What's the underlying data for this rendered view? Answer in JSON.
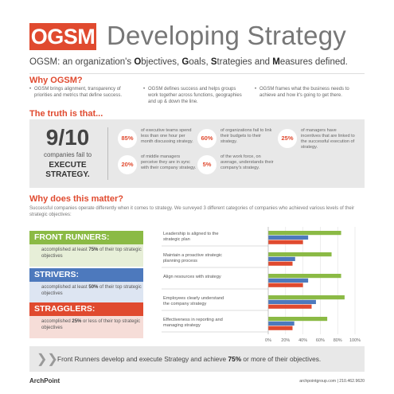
{
  "header": {
    "logo": "OGSM",
    "title": "Developing Strategy",
    "subtitle_parts": [
      {
        "text": "OGSM: ",
        "bold": false
      },
      {
        "text": "an organization's ",
        "bold": false
      },
      {
        "text": "O",
        "bold": true
      },
      {
        "text": "bjectives, ",
        "bold": false
      },
      {
        "text": "G",
        "bold": true
      },
      {
        "text": "oals, ",
        "bold": false
      },
      {
        "text": "S",
        "bold": true
      },
      {
        "text": "trategies and ",
        "bold": false
      },
      {
        "text": "M",
        "bold": true
      },
      {
        "text": "easures defined.",
        "bold": false
      }
    ]
  },
  "why_ogsm": {
    "heading": "Why OGSM?",
    "bullet": "•",
    "items": [
      "OGSM brings alignment, transparency of priorities and metrics that define success.",
      "OGSM defines success and helps groups work together across functions, geographies and up & down the line.",
      "OGSM frames what the business needs to achieve and how it's going to get there."
    ]
  },
  "truth": {
    "heading": "The truth is that...",
    "big_number": "9/10",
    "big_label": "companies fail to",
    "big_label2_line1": "EXECUTE",
    "big_label2_line2": "STRATEGY.",
    "stats": [
      {
        "pct": "85%",
        "text": "of executive teams spend less than one hour per month discussing strategy."
      },
      {
        "pct": "60%",
        "text": "of organizations fail to link their budgets to their strategy."
      },
      {
        "pct": "25%",
        "text": "of managers have incentives that are linked to the successful execution of strategy."
      },
      {
        "pct": "20%",
        "text": "of middle managers perceive they are in sync with their company strategy."
      },
      {
        "pct": "5%",
        "text": "of the work force, on average, understands their company's strategy."
      }
    ]
  },
  "why_matter": {
    "heading": "Why does this matter?",
    "intro": "Successful companies operate differently when it comes to strategy. We surveyed 3 different categories of companies who achieved various levels of their strategic objectives:",
    "categories": [
      {
        "title": "FRONT RUNNERS:",
        "pre": "accomplished at least ",
        "bold": "75%",
        "post": " of their top strategic objectives",
        "color": "#8bba45",
        "bg": "#e7efd8"
      },
      {
        "title": "STRIVERS:",
        "pre": "accomplished at least ",
        "bold": "50%",
        "post": " of their top strategic objectives",
        "color": "#4d79bd",
        "bg": "#dde5f2"
      },
      {
        "title": "STRAGGLERS:",
        "pre": "accomplished ",
        "bold": "25%",
        "post": " or less of their top strategic objectives",
        "color": "#e04a2f",
        "bg": "#f6ddd8"
      }
    ]
  },
  "chart_data": {
    "type": "bar",
    "orientation": "horizontal",
    "categories": [
      "Leadership is aligned to the strategic plan",
      "Maintain a proactive strategic planning process",
      "Align resources with strategy",
      "Employees clearly understand the company strategy",
      "Effectiveness in reporting and managing strategy"
    ],
    "series": [
      {
        "name": "FRONT RUNNERS",
        "color": "#8bba45",
        "values": [
          84,
          73,
          84,
          88,
          68
        ]
      },
      {
        "name": "STRIVERS",
        "color": "#4d79bd",
        "values": [
          46,
          31,
          46,
          55,
          30
        ]
      },
      {
        "name": "STRAGGLERS",
        "color": "#e04a2f",
        "values": [
          40,
          28,
          40,
          50,
          28
        ]
      }
    ],
    "xlim": [
      0,
      100
    ],
    "xticks": [
      "0%",
      "20%",
      "40%",
      "60%",
      "80%",
      "100%"
    ],
    "grid": true
  },
  "bottom_bar": {
    "arrow": "❯❯",
    "text_pre": "Front Runners develop and execute Strategy and achieve ",
    "text_bold": "75%",
    "text_post": " or more of their objectives."
  },
  "footer": {
    "company": "ArchPoint",
    "contact": "archpointgroup.com | 210.462.9620"
  }
}
